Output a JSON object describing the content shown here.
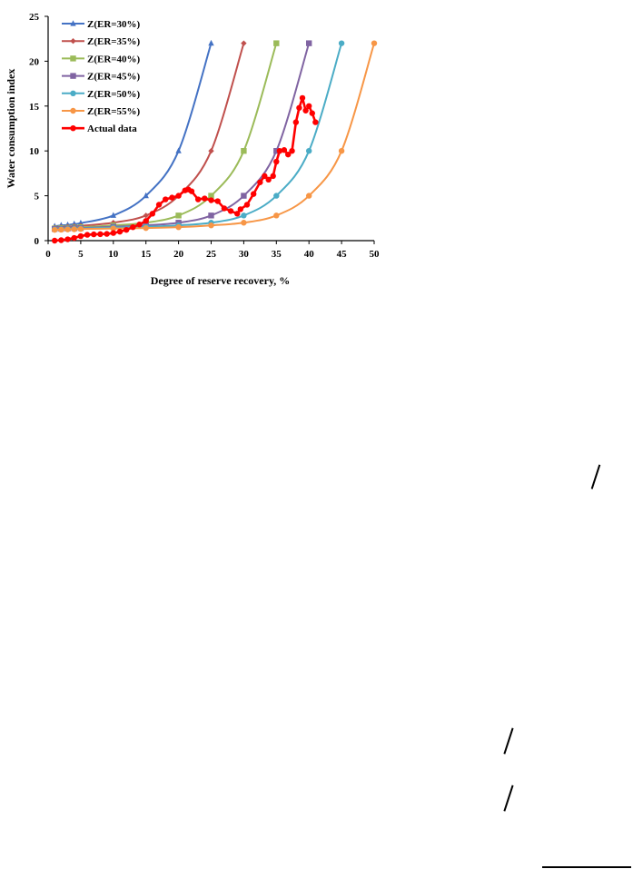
{
  "chart_data": {
    "type": "line",
    "title": "",
    "xlabel": "Degree of reserve recovery, %",
    "ylabel": "Water consumption index",
    "xlim": [
      0,
      50
    ],
    "ylim": [
      0,
      25
    ],
    "xticks": [
      0,
      5,
      10,
      15,
      20,
      25,
      30,
      35,
      40,
      45,
      50
    ],
    "yticks": [
      0,
      5,
      10,
      15,
      20,
      25
    ],
    "grid": false,
    "legend_position": "top-left",
    "series": [
      {
        "name": "Z(ER=30%)",
        "color": "#4472c4",
        "marker": "triangle",
        "curve_max": 25,
        "x": [
          1,
          2,
          3,
          4,
          5,
          10,
          15,
          20,
          25
        ],
        "y": [
          1.6,
          1.7,
          1.75,
          1.85,
          1.95,
          2.8,
          5.0,
          10.0,
          22.0
        ]
      },
      {
        "name": "Z(ER=35%)",
        "color": "#c0504d",
        "marker": "diamond",
        "curve_max": 30,
        "x": [
          1,
          2,
          3,
          4,
          5,
          10,
          15,
          20,
          25,
          30
        ],
        "y": [
          1.45,
          1.5,
          1.55,
          1.6,
          1.65,
          2.0,
          2.8,
          5.0,
          10.0,
          22.0
        ]
      },
      {
        "name": "Z(ER=40%)",
        "color": "#9bbb59",
        "marker": "square",
        "curve_max": 35,
        "x": [
          1,
          2,
          3,
          4,
          5,
          10,
          15,
          20,
          25,
          30,
          35
        ],
        "y": [
          1.35,
          1.4,
          1.42,
          1.45,
          1.5,
          1.7,
          2.0,
          2.8,
          5.0,
          10.0,
          22.0
        ]
      },
      {
        "name": "Z(ER=45%)",
        "color": "#8064a2",
        "marker": "square",
        "curve_max": 40,
        "x": [
          1,
          2,
          3,
          4,
          5,
          10,
          15,
          20,
          25,
          30,
          35,
          40
        ],
        "y": [
          1.3,
          1.32,
          1.35,
          1.38,
          1.4,
          1.55,
          1.7,
          2.0,
          2.8,
          5.0,
          10.0,
          22.0
        ]
      },
      {
        "name": "Z(ER=50%)",
        "color": "#4bacc6",
        "marker": "circle",
        "curve_max": 45,
        "x": [
          1,
          2,
          3,
          4,
          5,
          10,
          15,
          20,
          25,
          30,
          35,
          40,
          45
        ],
        "y": [
          1.25,
          1.27,
          1.3,
          1.32,
          1.35,
          1.45,
          1.55,
          1.7,
          2.0,
          2.8,
          5.0,
          10.0,
          22.0
        ]
      },
      {
        "name": "Z(ER=55%)",
        "color": "#f79646",
        "marker": "circle",
        "curve_max": 50,
        "x": [
          1,
          2,
          3,
          4,
          5,
          10,
          15,
          20,
          25,
          30,
          35,
          40,
          45,
          50
        ],
        "y": [
          1.2,
          1.22,
          1.25,
          1.27,
          1.3,
          1.35,
          1.4,
          1.5,
          1.7,
          2.0,
          2.8,
          5.0,
          10.0,
          22.0
        ]
      },
      {
        "name": "Actual data",
        "color": "#ff0000",
        "marker": "circle",
        "smooth": false,
        "x": [
          1,
          2,
          3,
          4,
          5,
          6,
          7,
          8,
          9,
          10,
          11,
          12,
          13,
          14,
          15,
          16,
          17,
          18,
          19,
          20,
          21,
          21.5,
          22,
          23,
          24,
          25,
          26,
          27,
          28,
          29,
          29.5,
          30.5,
          31.5,
          32.5,
          33.2,
          33.8,
          34.5,
          35,
          35.5,
          36.2,
          36.8,
          37.4,
          38,
          38.5,
          39,
          39.5,
          40,
          40.5,
          41
        ],
        "y": [
          0.0,
          0.05,
          0.15,
          0.3,
          0.5,
          0.65,
          0.7,
          0.72,
          0.75,
          0.85,
          1.0,
          1.2,
          1.5,
          1.8,
          2.2,
          3.0,
          4.0,
          4.6,
          4.8,
          5.0,
          5.6,
          5.7,
          5.5,
          4.6,
          4.7,
          4.5,
          4.4,
          3.6,
          3.3,
          3.0,
          3.5,
          4.0,
          5.2,
          6.5,
          7.2,
          6.8,
          7.2,
          8.8,
          10.0,
          10.1,
          9.6,
          10.0,
          13.2,
          14.8,
          15.9,
          14.5,
          15.0,
          14.2,
          13.2
        ]
      }
    ]
  }
}
